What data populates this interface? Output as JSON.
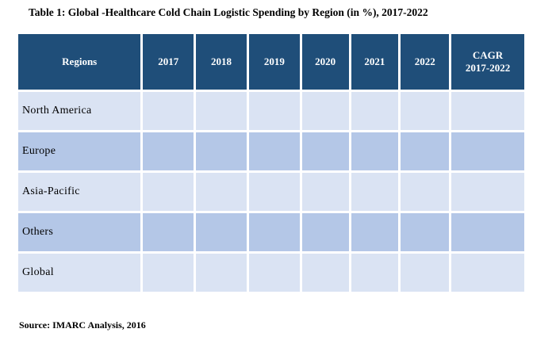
{
  "title": "Table 1: Global -Healthcare Cold Chain Logistic Spending by Region (in %), 2017-2022",
  "columns": [
    "Regions",
    "2017",
    "2018",
    "2019",
    "2020",
    "2021",
    "2022",
    "CAGR 2017-2022"
  ],
  "rows": [
    "North America",
    "Europe",
    "Asia-Pacific",
    "Others",
    "Global"
  ],
  "source": "Source: IMARC Analysis, 2016",
  "colors": {
    "header": "#1f4e79",
    "row_light": "#dae3f3",
    "row_dark": "#b4c7e7"
  }
}
